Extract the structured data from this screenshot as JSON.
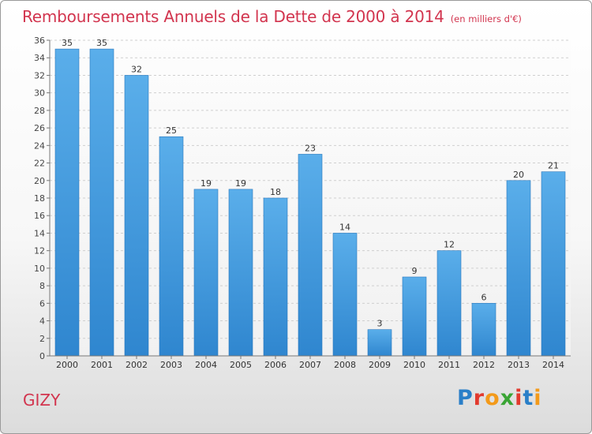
{
  "header": {
    "title": "Remboursements Annuels de la Dette de 2000 à 2014",
    "unit_note": "(en milliers d'€)"
  },
  "footer": {
    "place_name": "GIZY",
    "logo_text": "Proxiti",
    "logo_colors": [
      "#2a7fc8",
      "#e23a2e",
      "#f39a1a",
      "#3aa535",
      "#e23a2e",
      "#2a7fc8",
      "#f39a1a"
    ]
  },
  "chart_data": {
    "type": "bar",
    "title": "Remboursements Annuels de la Dette de 2000 à 2014",
    "xlabel": "",
    "ylabel": "",
    "categories": [
      "2000",
      "2001",
      "2002",
      "2003",
      "2004",
      "2005",
      "2006",
      "2007",
      "2008",
      "2009",
      "2010",
      "2011",
      "2012",
      "2013",
      "2014"
    ],
    "values": [
      35,
      35,
      32,
      25,
      19,
      19,
      18,
      23,
      14,
      3,
      9,
      12,
      6,
      20,
      21
    ],
    "ylim": [
      0,
      36
    ],
    "yticks": [
      0,
      2,
      4,
      6,
      8,
      10,
      12,
      14,
      16,
      18,
      20,
      22,
      24,
      26,
      28,
      30,
      32,
      34,
      36
    ],
    "grid": true,
    "bar_color": "#4a9fe0",
    "legend": "none"
  }
}
